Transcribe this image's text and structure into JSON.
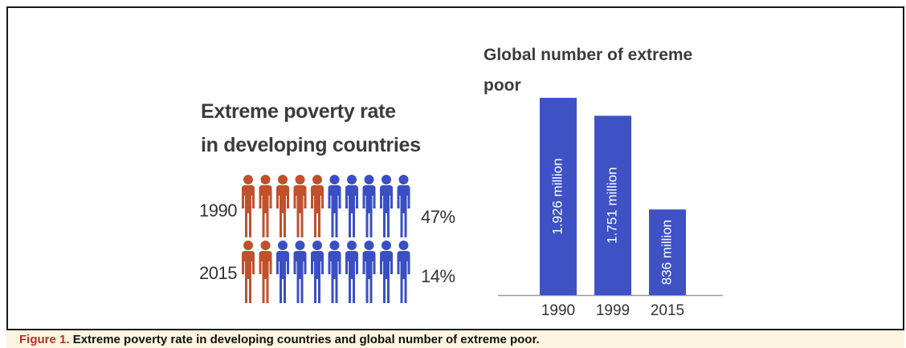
{
  "caption": {
    "label": "Figure 1.",
    "text": "Extreme poverty rate in developing countries and global number of extreme poor."
  },
  "colors": {
    "poor": "#c0512b",
    "nonpoor": "#3a4fc4",
    "bar": "#3e52c6"
  },
  "chart_data": [
    {
      "type": "pictogram",
      "title_lines": [
        "Extreme poverty rate",
        "in developing countries"
      ],
      "icons_per_row": 10,
      "rows": [
        {
          "year": "1990",
          "poor_icons": 5,
          "label": "47%",
          "value": 47
        },
        {
          "year": "2015",
          "poor_icons": 2,
          "label": "14%",
          "value": 14
        }
      ]
    },
    {
      "type": "bar",
      "title_lines": [
        "Global number of extreme",
        "poor"
      ],
      "categories": [
        "1990",
        "1999",
        "2015"
      ],
      "values": [
        1926,
        1751,
        836
      ],
      "value_labels": [
        "1.926 million",
        "1.751 million",
        "836 million"
      ],
      "ylim": [
        0,
        1926
      ]
    }
  ]
}
